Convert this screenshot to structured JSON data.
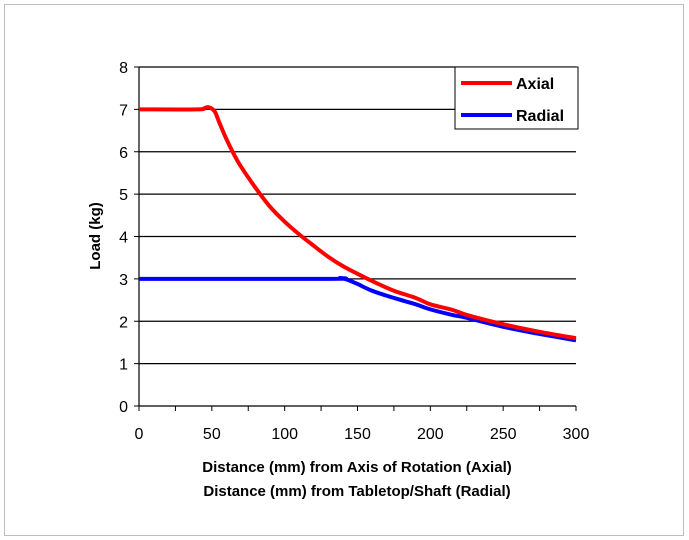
{
  "chart_data": {
    "type": "line",
    "xlabel_lines": [
      "Distance (mm) from Axis of Rotation (Axial)",
      "Distance (mm) from Tabletop/Shaft (Radial)"
    ],
    "ylabel": "Load (kg)",
    "xlim": [
      0,
      300
    ],
    "ylim": [
      0,
      8
    ],
    "x_ticks": [
      0,
      50,
      100,
      150,
      200,
      250,
      300
    ],
    "y_ticks": [
      0,
      1,
      2,
      3,
      4,
      5,
      6,
      7,
      8
    ],
    "grid": "horizontal",
    "legend_position": "top-right",
    "series": [
      {
        "name": "Axial",
        "color": "#ff0000",
        "points": [
          [
            0,
            7.0
          ],
          [
            40,
            7.0
          ],
          [
            45,
            7.03
          ],
          [
            48,
            7.05
          ],
          [
            52,
            6.95
          ],
          [
            55,
            6.7
          ],
          [
            60,
            6.3
          ],
          [
            65,
            5.95
          ],
          [
            70,
            5.65
          ],
          [
            80,
            5.15
          ],
          [
            90,
            4.7
          ],
          [
            100,
            4.35
          ],
          [
            110,
            4.05
          ],
          [
            120,
            3.78
          ],
          [
            130,
            3.52
          ],
          [
            140,
            3.3
          ],
          [
            150,
            3.12
          ],
          [
            160,
            2.95
          ],
          [
            175,
            2.72
          ],
          [
            190,
            2.55
          ],
          [
            200,
            2.4
          ],
          [
            215,
            2.27
          ],
          [
            225,
            2.15
          ],
          [
            250,
            1.93
          ],
          [
            275,
            1.75
          ],
          [
            300,
            1.6
          ]
        ]
      },
      {
        "name": "Radial",
        "color": "#0000ff",
        "points": [
          [
            0,
            3.0
          ],
          [
            130,
            3.0
          ],
          [
            138,
            3.02
          ],
          [
            143,
            2.98
          ],
          [
            150,
            2.88
          ],
          [
            160,
            2.72
          ],
          [
            175,
            2.55
          ],
          [
            190,
            2.4
          ],
          [
            200,
            2.28
          ],
          [
            215,
            2.15
          ],
          [
            225,
            2.08
          ],
          [
            250,
            1.87
          ],
          [
            275,
            1.7
          ],
          [
            300,
            1.55
          ]
        ]
      }
    ]
  }
}
